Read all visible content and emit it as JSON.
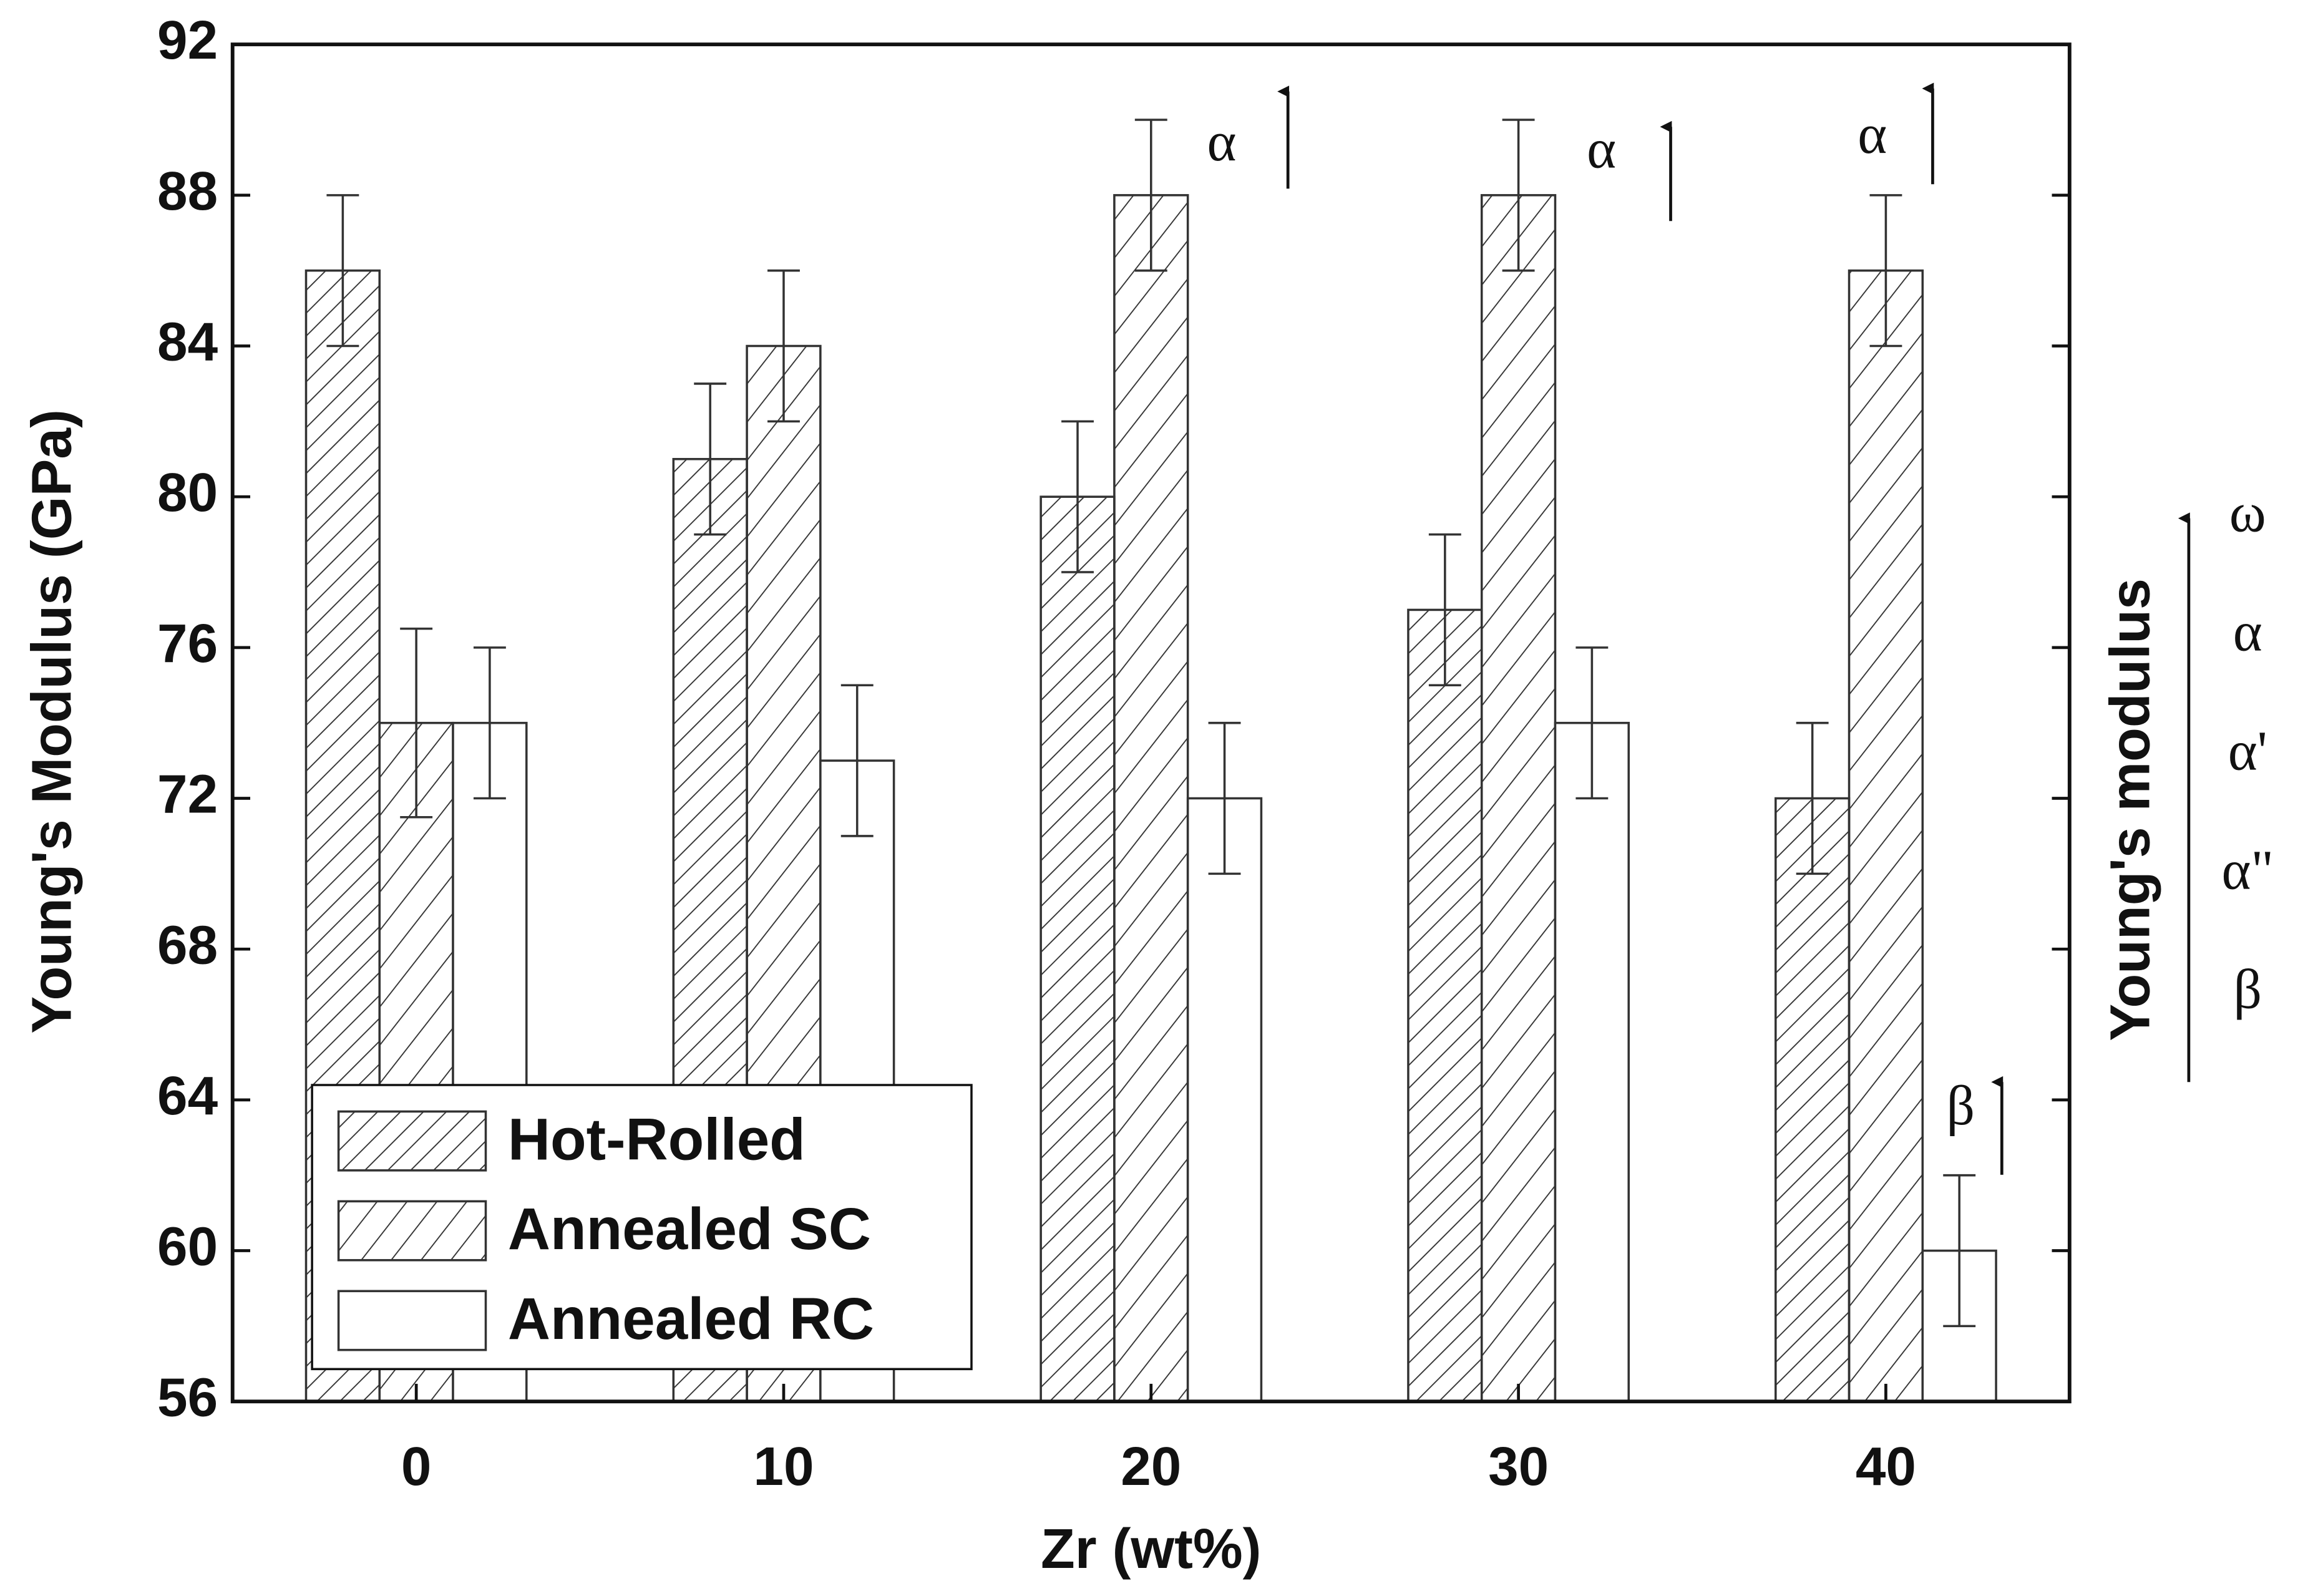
{
  "chart_data": {
    "type": "bar",
    "x_label": "Zr (wt%)",
    "y_label": "Young's Modulus (GPa)",
    "categories": [
      "0",
      "10",
      "20",
      "30",
      "40"
    ],
    "series": [
      {
        "name": "Hot-Rolled",
        "color": "#333333",
        "pattern": "dense-hatch",
        "values": [
          86,
          81,
          80,
          77,
          72
        ],
        "errors": [
          2,
          2,
          2,
          2,
          2
        ]
      },
      {
        "name": "Annealed SC",
        "color": "#333333",
        "pattern": "sparse-hatch",
        "values": [
          74,
          84,
          88,
          88,
          86
        ],
        "errors": [
          2.5,
          2,
          2,
          2,
          2
        ]
      },
      {
        "name": "Annealed RC",
        "color": "#333333",
        "pattern": "none",
        "values": [
          74,
          73,
          72,
          74,
          60
        ],
        "errors": [
          2,
          2,
          2,
          2,
          2
        ]
      }
    ],
    "ylim": [
      56,
      92
    ],
    "yticks": [
      56,
      60,
      64,
      68,
      72,
      76,
      80,
      84,
      88,
      92
    ],
    "legend": "lower left",
    "annotations": [
      "α",
      "α",
      "α",
      "β"
    ],
    "right_label": "Young's modulus",
    "phases": [
      "ω",
      "α",
      "α'",
      "α\"",
      "β"
    ]
  }
}
